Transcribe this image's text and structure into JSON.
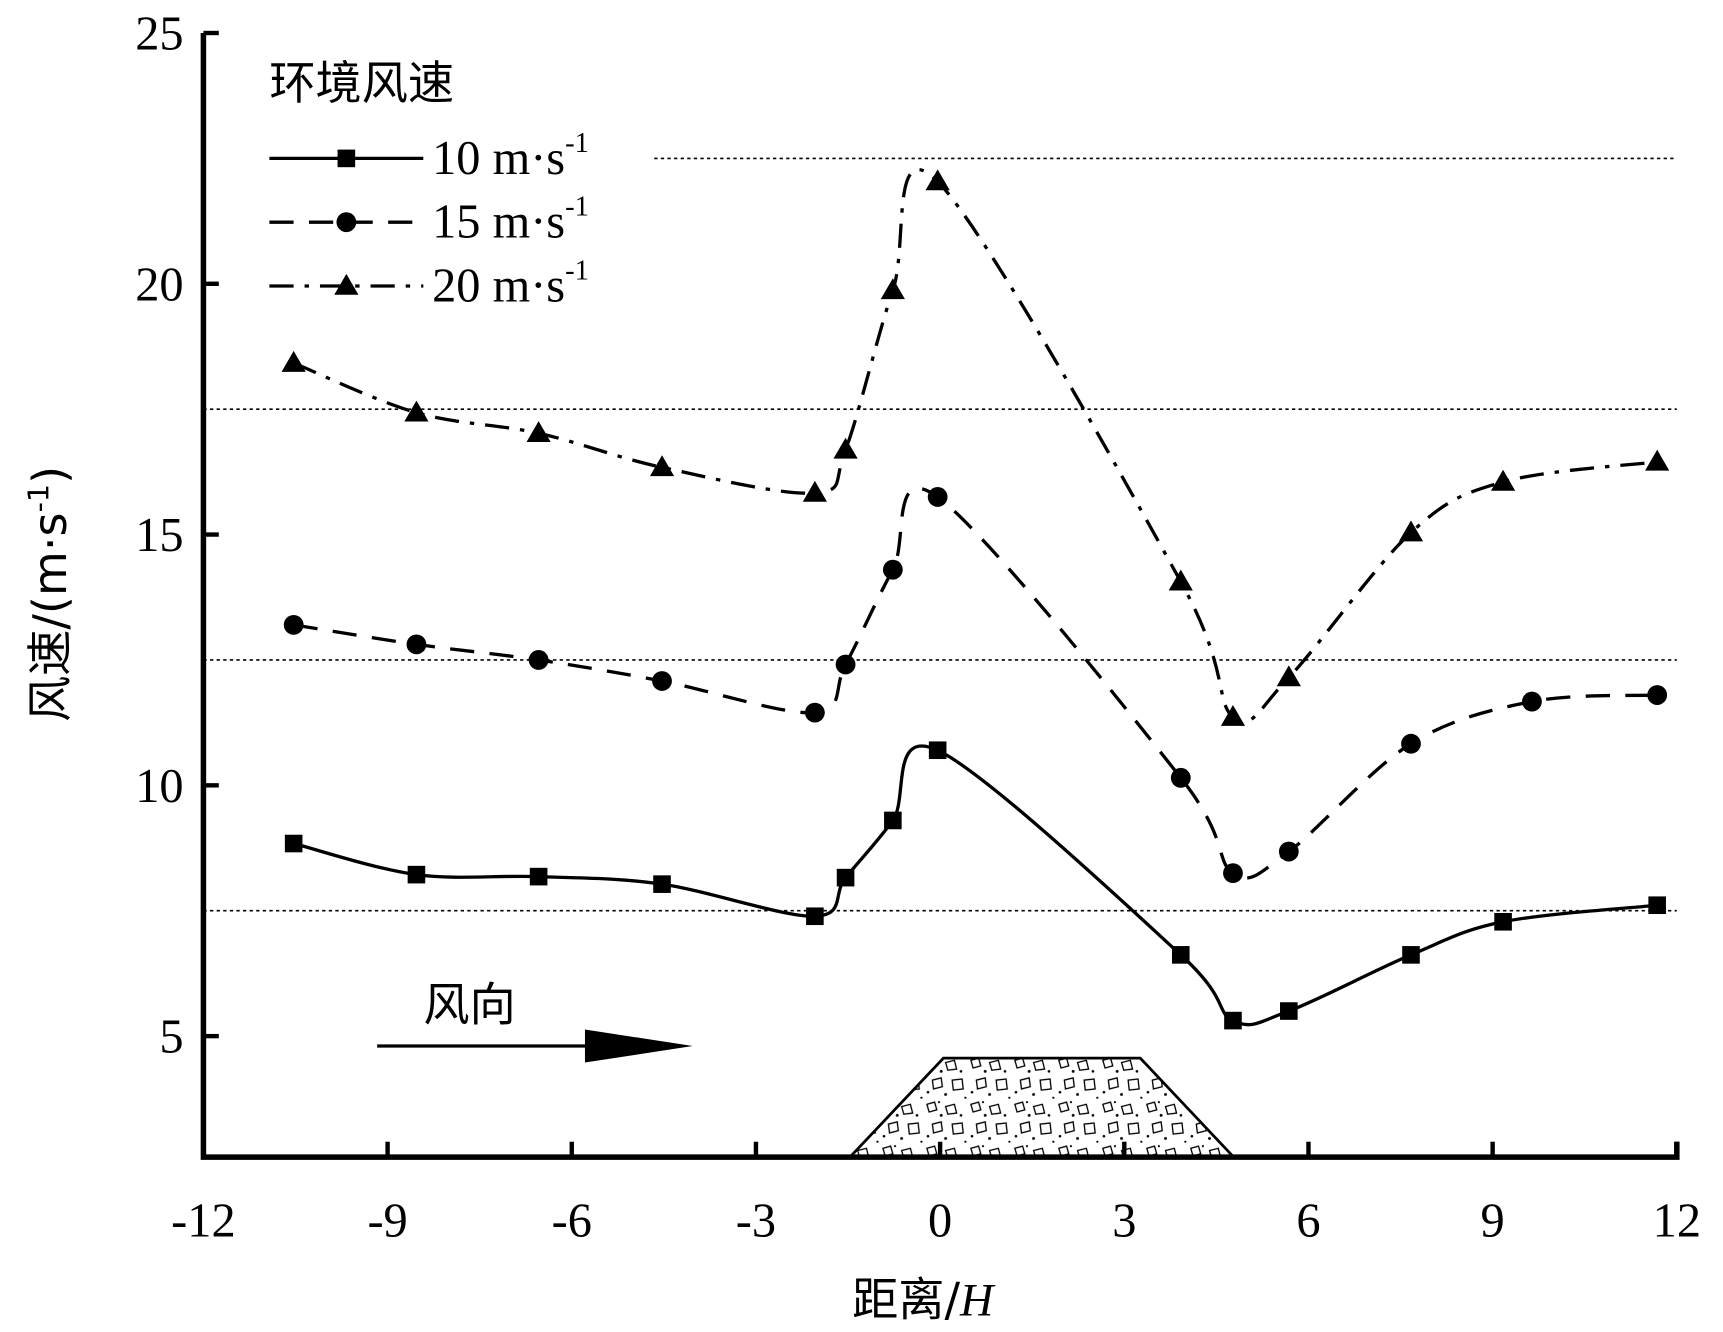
{
  "chart_data": {
    "type": "line",
    "xlabel_main": "距离/",
    "xlabel_italic": "H",
    "ylabel": "风速/(m·s",
    "ylabel_sup": "-1",
    "ylabel_end": ")",
    "xlim": [
      -12,
      12
    ],
    "ylim": [
      2.6,
      25
    ],
    "xticks": [
      "-12",
      "-9",
      "-6",
      "-3",
      "0",
      "3",
      "6",
      "9",
      "12"
    ],
    "xtick_values": [
      -12,
      -9,
      -6,
      -3,
      0,
      3,
      6,
      9,
      12
    ],
    "yticks": [
      "5",
      "10",
      "15",
      "20",
      "25"
    ],
    "ytick_values": [
      5,
      10,
      15,
      20,
      25
    ],
    "reference_lines": [
      7.5,
      12.5,
      17.5,
      22.5
    ],
    "legend_title": "环境风速",
    "legend_placement": "top-left",
    "annotation": "风向",
    "series": [
      {
        "name": "10 m·s",
        "sup": "-1",
        "marker": "square",
        "dash": "solid",
        "x": [
          -10.53,
          -8.53,
          -6.54,
          -4.53,
          -2.04,
          -1.54,
          -0.77,
          -0.04,
          3.92,
          4.77,
          5.68,
          7.67,
          9.17,
          11.68
        ],
        "y": [
          8.84,
          8.22,
          8.18,
          8.03,
          7.39,
          8.16,
          9.3,
          10.7,
          6.62,
          5.31,
          5.5,
          6.62,
          7.28,
          7.61
        ]
      },
      {
        "name": "15 m·s",
        "sup": "-1",
        "marker": "circle",
        "dash": "dashed",
        "x": [
          -10.53,
          -8.53,
          -6.54,
          -4.53,
          -2.04,
          -1.54,
          -0.77,
          -0.04,
          3.92,
          4.77,
          5.68,
          7.67,
          9.64,
          11.68
        ],
        "y": [
          13.2,
          12.81,
          12.5,
          12.08,
          11.45,
          12.41,
          14.3,
          15.75,
          10.15,
          8.25,
          8.68,
          10.83,
          11.67,
          11.8
        ]
      },
      {
        "name": "20 m·s",
        "sup": "-1",
        "marker": "triangle",
        "dash": "dashdot",
        "x": [
          -10.53,
          -8.53,
          -6.54,
          -4.53,
          -2.04,
          -1.54,
          -0.77,
          -0.04,
          3.92,
          4.77,
          5.68,
          7.67,
          9.17,
          11.68
        ],
        "y": [
          18.42,
          17.43,
          17.02,
          16.34,
          15.83,
          16.69,
          19.87,
          22.04,
          14.06,
          11.36,
          12.15,
          15.04,
          16.05,
          16.45
        ]
      }
    ]
  }
}
